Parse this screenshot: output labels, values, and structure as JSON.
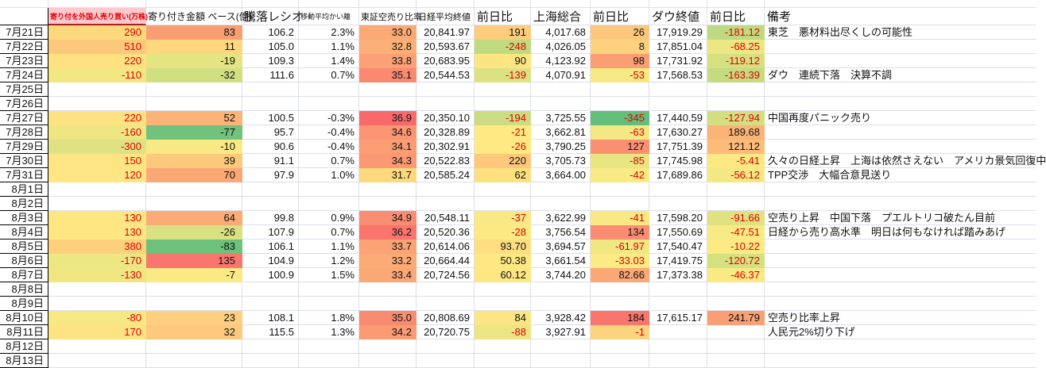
{
  "header": {
    "date": "",
    "foreign": "寄り付を外国人売り買い(万株)",
    "amount": "寄り付き金額 ベース(億)",
    "ratio": "騰落レシオ",
    "kairi": "移動平均かい離",
    "short": "東証空売り比率",
    "nikkeiChg_label": "前日比",
    "nikkei": "日経平均終値",
    "sse": "上海総合",
    "sseChg_label": "前日比",
    "dow": "ダウ終値",
    "dowChg_label": "前日比",
    "remark": "備考"
  },
  "colors": {
    "red_text": "#e00000",
    "pink_header_bg": "#ffc7ce",
    "pink_header_text": "#dd0000",
    "pink_header_border": "#a82020",
    "gridline": "#dcdfe8",
    "date_border": "#000000",
    "scale_max_red": "#f8696b",
    "scale_mid_yellow": "#ffeb84",
    "scale_min_green": "#63be7b"
  },
  "rows": [
    {
      "date": "7月21日",
      "foreign": [
        "290",
        "#fdd87d"
      ],
      "amount": [
        "83",
        "#f99d72"
      ],
      "ratio": [
        "106.2"
      ],
      "kairi": [
        "2.3%"
      ],
      "short": [
        "33.0",
        "#fbaa76"
      ],
      "nikkei": [
        "20,841.97"
      ],
      "nikkeiChg": [
        "191",
        "#fdcc7d"
      ],
      "sse": [
        "4,017.68"
      ],
      "sseChg": [
        "26",
        "#fcc77c"
      ],
      "dow": [
        "17,919.29"
      ],
      "dowChg": [
        "-181.12",
        "#bed97f"
      ],
      "remark": "東芝　悪材料出尽くしの可能性"
    },
    {
      "date": "7月22日",
      "foreign": [
        "510",
        "#fcc87c"
      ],
      "amount": [
        "11",
        "#fed77f"
      ],
      "ratio": [
        "105.0"
      ],
      "kairi": [
        "1.1%"
      ],
      "short": [
        "32.8",
        "#fbb077"
      ],
      "nikkei": [
        "20,593.67"
      ],
      "nikkeiChg": [
        "-248",
        "#c0da80"
      ],
      "sse": [
        "4,026.05"
      ],
      "sseChg": [
        "8",
        "#fdd17e"
      ],
      "dow": [
        "17,851.04"
      ],
      "dowChg": [
        "-68.25",
        "#ece683"
      ],
      "remark": ""
    },
    {
      "date": "7月23日",
      "foreign": [
        "220",
        "#fee181"
      ],
      "amount": [
        "-19",
        "#e4e482"
      ],
      "ratio": [
        "109.3"
      ],
      "kairi": [
        "1.4%"
      ],
      "short": [
        "33.8",
        "#fba175"
      ],
      "nikkei": [
        "20,683.95"
      ],
      "nikkeiChg": [
        "90",
        "#fee583"
      ],
      "sse": [
        "4,123.92"
      ],
      "sseChg": [
        "98",
        "#fa9e74"
      ],
      "dow": [
        "17,731.92"
      ],
      "dowChg": [
        "-119.12",
        "#d7e081"
      ],
      "remark": ""
    },
    {
      "date": "7月24日",
      "foreign": [
        "-110",
        "#f2e783"
      ],
      "amount": [
        "-32",
        "#cfdf81"
      ],
      "ratio": [
        "111.6"
      ],
      "kairi": [
        "0.7%"
      ],
      "short": [
        "35.1",
        "#f98a71"
      ],
      "nikkei": [
        "20,544.53"
      ],
      "nikkeiChg": [
        "-139",
        "#dce182"
      ],
      "sse": [
        "4,070.91"
      ],
      "sseChg": [
        "-53",
        "#f6e983"
      ],
      "dow": [
        "17,568.53"
      ],
      "dowChg": [
        "-163.39",
        "#c4db80"
      ],
      "remark": "ダウ　連続下落　決算不調"
    },
    {
      "date": "7月25日"
    },
    {
      "date": "7月26日"
    },
    {
      "date": "7月27日",
      "foreign": [
        "220",
        "#fee181"
      ],
      "amount": [
        "52",
        "#fbb377"
      ],
      "ratio": [
        "100.5"
      ],
      "kairi": [
        "-0.3%"
      ],
      "short": [
        "36.9",
        "#f8696b"
      ],
      "nikkei": [
        "20,350.10"
      ],
      "nikkeiChg": [
        "-194",
        "#cbdd80"
      ],
      "sse": [
        "3,725.55"
      ],
      "sseChg": [
        "-345",
        "#63be7b"
      ],
      "dow": [
        "17,440.59"
      ],
      "dowChg": [
        "-127.94",
        "#d2df81"
      ],
      "remark": "中国再度パニック売り"
    },
    {
      "date": "7月28日",
      "foreign": [
        "-160",
        "#eee683"
      ],
      "amount": [
        "-77",
        "#70c27c"
      ],
      "ratio": [
        "95.7"
      ],
      "kairi": [
        "-0.4%"
      ],
      "short": [
        "34.6",
        "#fa9673"
      ],
      "nikkei": [
        "20,328.89"
      ],
      "nikkeiChg": [
        "-21",
        "#fee983"
      ],
      "sse": [
        "3,662.81"
      ],
      "sseChg": [
        "-63",
        "#f3e883"
      ],
      "dow": [
        "17,630.27"
      ],
      "dowChg": [
        "189.68",
        "#fbb377"
      ],
      "remark": ""
    },
    {
      "date": "7月29日",
      "foreign": [
        "-300",
        "#dfe282"
      ],
      "amount": [
        "-10",
        "#f8e984"
      ],
      "ratio": [
        "90.6"
      ],
      "kairi": [
        "-0.4%"
      ],
      "short": [
        "34.1",
        "#fa9d74"
      ],
      "nikkei": [
        "20,302.91"
      ],
      "nikkeiChg": [
        "-26",
        "#fee983"
      ],
      "sse": [
        "3,790.25"
      ],
      "sseChg": [
        "127",
        "#fa9072"
      ],
      "dow": [
        "17,751.39"
      ],
      "dowChg": [
        "121.12",
        "#fcbb79"
      ],
      "remark": ""
    },
    {
      "date": "7月30日",
      "foreign": [
        "150",
        "#fee583"
      ],
      "amount": [
        "39",
        "#fcc97c"
      ],
      "ratio": [
        "91.1"
      ],
      "kairi": [
        "0.7%"
      ],
      "short": [
        "34.3",
        "#fa9973"
      ],
      "nikkei": [
        "20,522.83"
      ],
      "nikkeiChg": [
        "220",
        "#fdc87c"
      ],
      "sse": [
        "3,705.73"
      ],
      "sseChg": [
        "-85",
        "#e9e583"
      ],
      "dow": [
        "17,745.98"
      ],
      "dowChg": [
        "-5.41",
        "#fee883"
      ],
      "remark": "久々の日経上昇　上海は依然さえない　アメリカ景気回復中"
    },
    {
      "date": "7月31日",
      "foreign": [
        "120",
        "#fee684"
      ],
      "amount": [
        "70",
        "#fba876"
      ],
      "ratio": [
        "97.9"
      ],
      "kairi": [
        "1.0%"
      ],
      "short": [
        "31.7",
        "#fdd97e"
      ],
      "nikkei": [
        "20,585.24"
      ],
      "nikkeiChg": [
        "62",
        "#fee07f"
      ],
      "sse": [
        "3,664.00"
      ],
      "sseChg": [
        "-42",
        "#f9ea84"
      ],
      "dow": [
        "17,689.86"
      ],
      "dowChg": [
        "-56.12",
        "#f4e883"
      ],
      "remark": "TPP交渉　大幅合意見送り"
    },
    {
      "date": "8月1日"
    },
    {
      "date": "8月2日"
    },
    {
      "date": "8月3日",
      "foreign": [
        "130",
        "#fee683"
      ],
      "amount": [
        "64",
        "#fbab76"
      ],
      "ratio": [
        "99.8"
      ],
      "kairi": [
        "0.9%"
      ],
      "short": [
        "34.9",
        "#f98d72"
      ],
      "nikkei": [
        "20,548.11"
      ],
      "nikkeiChg": [
        "-37",
        "#f9e984"
      ],
      "sse": [
        "3,622.99"
      ],
      "sseChg": [
        "-41",
        "#f9e984"
      ],
      "dow": [
        "17,598.20"
      ],
      "dowChg": [
        "-91.66",
        "#e0e282"
      ],
      "remark": "空売り上昇　中国下落　プエルトリコ破たん目前"
    },
    {
      "date": "8月4日",
      "foreign": [
        "130",
        "#fee683"
      ],
      "amount": [
        "-26",
        "#d9e182"
      ],
      "ratio": [
        "107.9"
      ],
      "kairi": [
        "0.7%"
      ],
      "short": [
        "36.2",
        "#f9756d"
      ],
      "nikkei": [
        "20,520.36"
      ],
      "nikkeiChg": [
        "-28",
        "#fce984"
      ],
      "sse": [
        "3,756.54"
      ],
      "sseChg": [
        "134",
        "#fa8d71"
      ],
      "dow": [
        "17,550.69"
      ],
      "dowChg": [
        "-47.51",
        "#f8ea84"
      ],
      "remark": "日経から売り高水準　明日は何もなければ踏みあげ"
    },
    {
      "date": "8月5日",
      "foreign": [
        "380",
        "#fdd07d"
      ],
      "amount": [
        "-83",
        "#6cc17b"
      ],
      "ratio": [
        "106.1"
      ],
      "kairi": [
        "1.1%"
      ],
      "short": [
        "33.7",
        "#fba375"
      ],
      "nikkei": [
        "20,614.06"
      ],
      "nikkeiChg": [
        "93.70",
        "#fede81"
      ],
      "sse": [
        "3,694.57"
      ],
      "sseChg": [
        "-61.97",
        "#f0e783"
      ],
      "dow": [
        "17,540.47"
      ],
      "dowChg": [
        "-10.22",
        "#feea84"
      ],
      "remark": ""
    },
    {
      "date": "8月6日",
      "foreign": [
        "-170",
        "#ece683"
      ],
      "amount": [
        "135",
        "#f8766e"
      ],
      "ratio": [
        "104.9"
      ],
      "kairi": [
        "1.2%"
      ],
      "short": [
        "33.2",
        "#fcab76"
      ],
      "nikkei": [
        "20,664.44"
      ],
      "nikkeiChg": [
        "50.38",
        "#fee883"
      ],
      "sse": [
        "3,661.54"
      ],
      "sseChg": [
        "-33.03",
        "#fcea84"
      ],
      "dow": [
        "17,419.75"
      ],
      "dowChg": [
        "-120.72",
        "#d5e081"
      ],
      "remark": ""
    },
    {
      "date": "8月7日",
      "foreign": [
        "-130",
        "#f0e783"
      ],
      "amount": [
        "-7",
        "#fae984"
      ],
      "ratio": [
        "100.9"
      ],
      "kairi": [
        "1.5%"
      ],
      "short": [
        "33.4",
        "#fca776"
      ],
      "nikkei": [
        "20,724.56"
      ],
      "nikkeiChg": [
        "60.12",
        "#fee783"
      ],
      "sse": [
        "3,744.20"
      ],
      "sseChg": [
        "82.66",
        "#fba876"
      ],
      "dow": [
        "17,373.38"
      ],
      "dowChg": [
        "-46.37",
        "#f9ea84"
      ],
      "remark": ""
    },
    {
      "date": "8月8日"
    },
    {
      "date": "8月9日"
    },
    {
      "date": "8月10日",
      "foreign": [
        "-80",
        "#f6e983"
      ],
      "amount": [
        "23",
        "#fdcf7e"
      ],
      "ratio": [
        "108.1"
      ],
      "kairi": [
        "1.8%"
      ],
      "short": [
        "35.0",
        "#f98b71"
      ],
      "nikkei": [
        "20,808.69"
      ],
      "nikkeiChg": [
        "84",
        "#fee583"
      ],
      "sse": [
        "3,928.42"
      ],
      "sseChg": [
        "184",
        "#f9766d"
      ],
      "dow": [
        "17,615.17"
      ],
      "dowChg": [
        "241.79",
        "#fa9e74"
      ],
      "remark": "空売り比率上昇"
    },
    {
      "date": "8月11日",
      "foreign": [
        "170",
        "#fee383"
      ],
      "amount": [
        "32",
        "#fdc97c"
      ],
      "ratio": [
        "115.5"
      ],
      "kairi": [
        "1.3%"
      ],
      "short": [
        "34.2",
        "#fa9b74"
      ],
      "nikkei": [
        "20,720.75"
      ],
      "nikkeiChg": [
        "-88",
        "#ebe683"
      ],
      "sse": [
        "3,927.91"
      ],
      "sseChg": [
        "-1",
        "#fdd37e"
      ],
      "remark": "人民元2%切り下げ"
    },
    {
      "date": "8月12日"
    },
    {
      "date": "8月13日"
    }
  ]
}
